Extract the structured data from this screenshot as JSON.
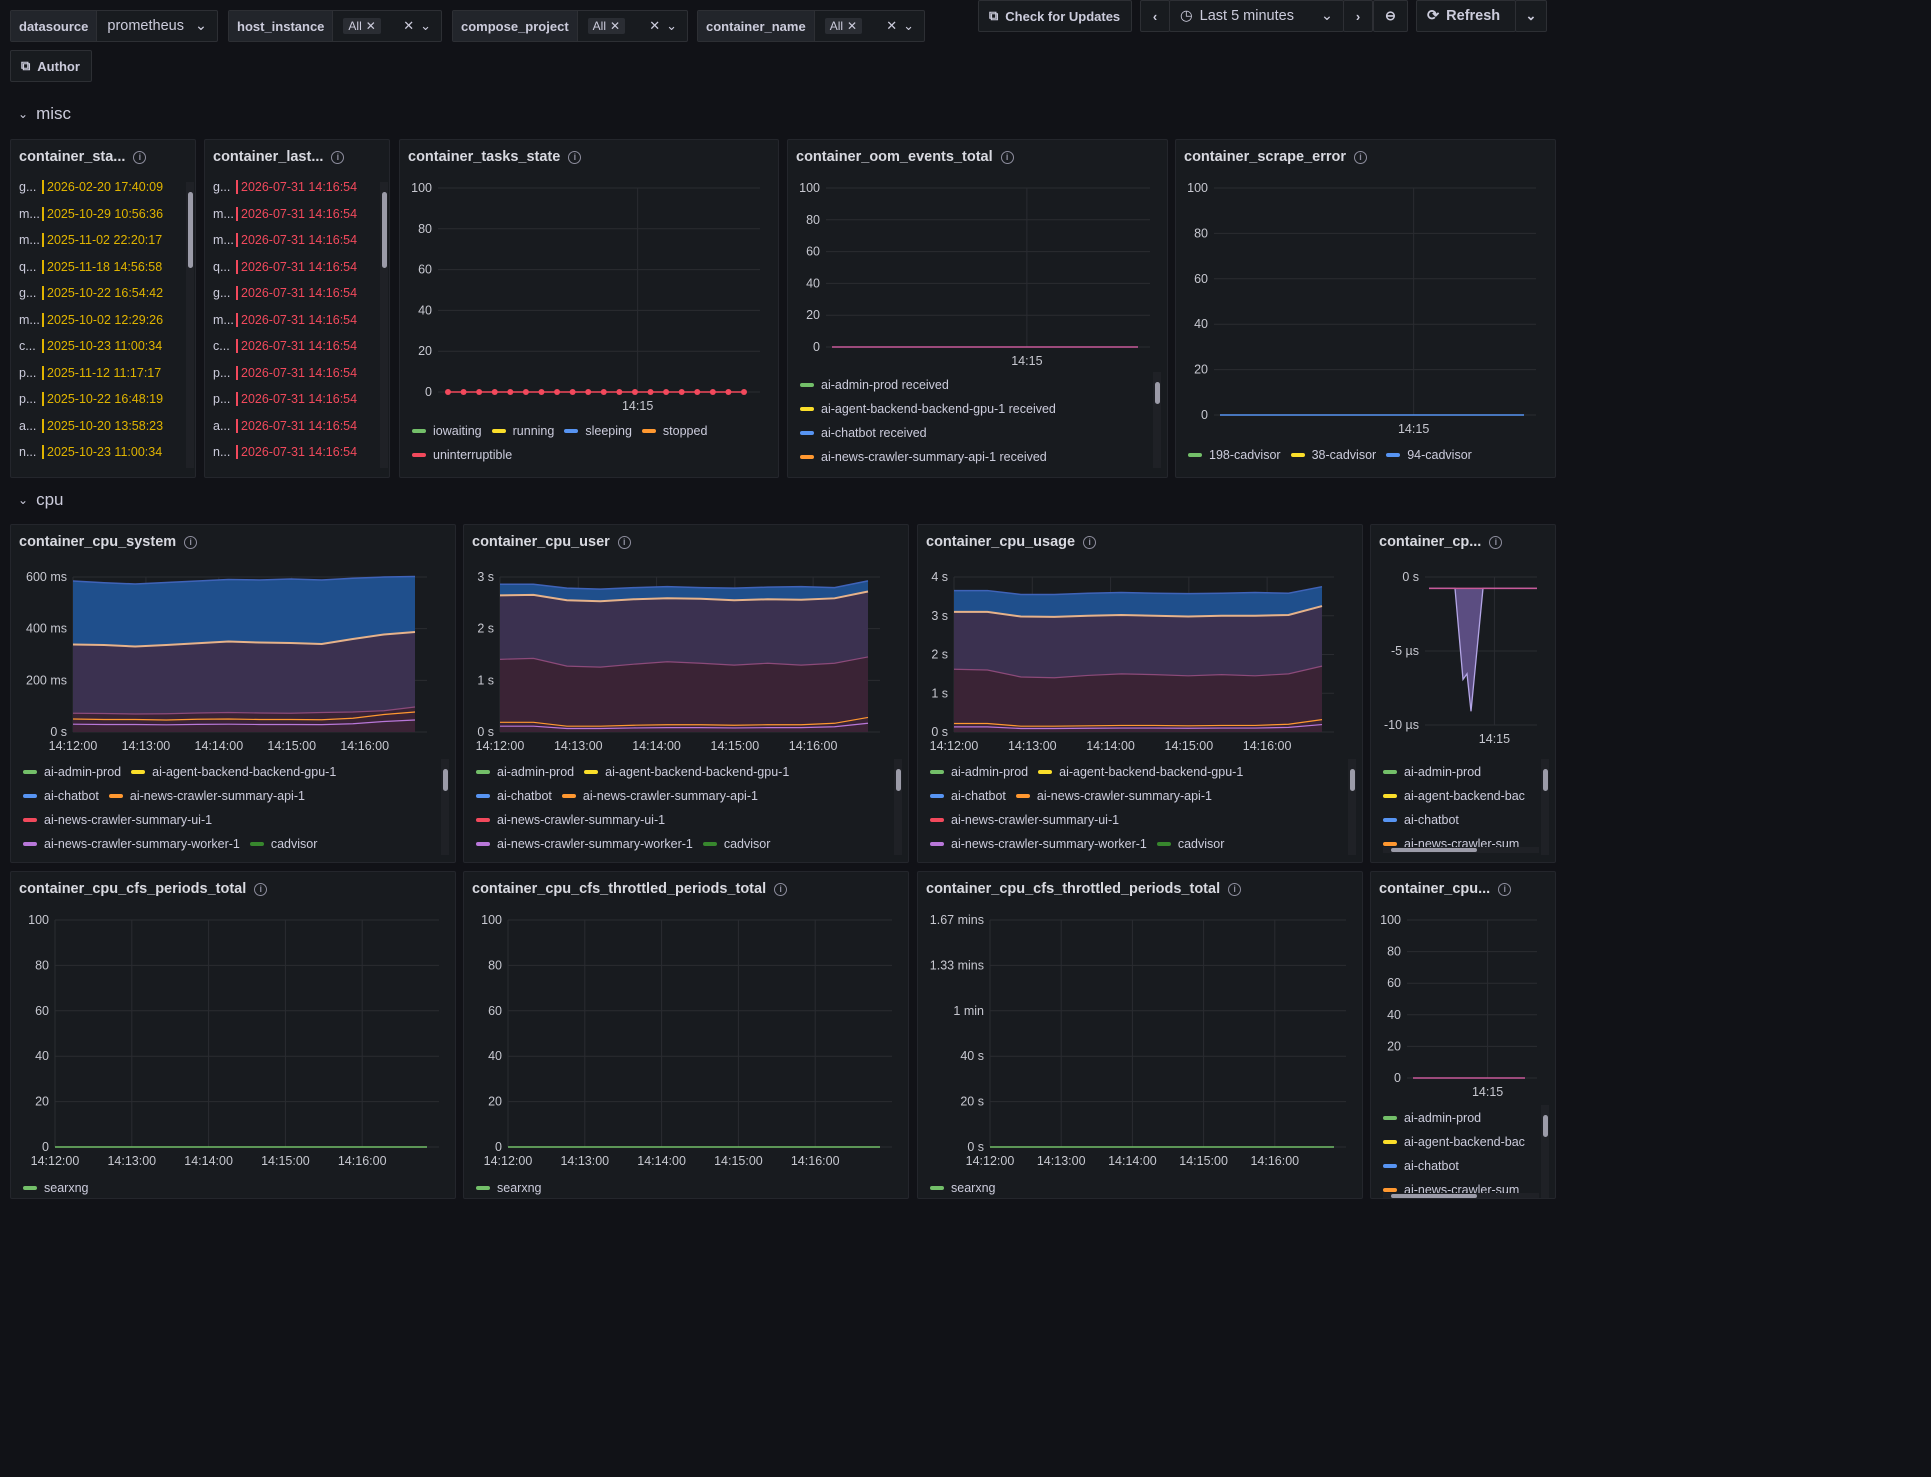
{
  "vars": [
    {
      "label": "datasource",
      "value": "prometheus"
    },
    {
      "label": "host_instance",
      "chip": "All"
    },
    {
      "label": "compose_project",
      "chip": "All"
    },
    {
      "label": "container_name",
      "chip": "All"
    }
  ],
  "toolbar": {
    "check_updates": "Check for Updates",
    "time_range": "Last 5 minutes",
    "refresh": "Refresh",
    "author": "Author"
  },
  "rows": {
    "misc": "misc",
    "cpu": "cpu"
  },
  "start_panel": {
    "title": "container_sta...",
    "rows": [
      {
        "k": "g...",
        "v": "2026-02-20 17:40:09"
      },
      {
        "k": "m...",
        "v": "2025-10-29 10:56:36"
      },
      {
        "k": "m...",
        "v": "2025-11-02 22:20:17"
      },
      {
        "k": "q...",
        "v": "2025-11-18 14:56:58"
      },
      {
        "k": "g...",
        "v": "2025-10-22 16:54:42"
      },
      {
        "k": "m...",
        "v": "2025-10-02 12:29:26"
      },
      {
        "k": "c...",
        "v": "2025-10-23 11:00:34"
      },
      {
        "k": "p...",
        "v": "2025-11-12 11:17:17"
      },
      {
        "k": "p...",
        "v": "2025-10-22 16:48:19"
      },
      {
        "k": "a...",
        "v": "2025-10-20 13:58:23"
      },
      {
        "k": "n...",
        "v": "2025-10-23 11:00:34"
      }
    ]
  },
  "last_panel": {
    "title": "container_last...",
    "rows": [
      {
        "k": "g...",
        "v": "2026-07-31 14:16:54"
      },
      {
        "k": "m...",
        "v": "2026-07-31 14:16:54"
      },
      {
        "k": "m...",
        "v": "2026-07-31 14:16:54"
      },
      {
        "k": "q...",
        "v": "2026-07-31 14:16:54"
      },
      {
        "k": "g...",
        "v": "2026-07-31 14:16:54"
      },
      {
        "k": "m...",
        "v": "2026-07-31 14:16:54"
      },
      {
        "k": "c...",
        "v": "2026-07-31 14:16:54"
      },
      {
        "k": "p...",
        "v": "2026-07-31 14:16:54"
      },
      {
        "k": "p...",
        "v": "2026-07-31 14:16:54"
      },
      {
        "k": "a...",
        "v": "2026-07-31 14:16:54"
      },
      {
        "k": "n...",
        "v": "2026-07-31 14:16:54"
      }
    ]
  },
  "colors": {
    "green": "#73bf69",
    "yellow": "#fade2a",
    "blue": "#5794f2",
    "orange": "#ff9830",
    "red": "#f2495c",
    "purple": "#b877d9",
    "dkgreen": "#37872d",
    "start_val": "#e0b400",
    "last_val": "#f2495c"
  },
  "panels": [
    {
      "id": "tasks",
      "title": "container_tasks_state",
      "legend": [
        {
          "name": "iowaiting",
          "color": "#73bf69"
        },
        {
          "name": "running",
          "color": "#fade2a"
        },
        {
          "name": "sleeping",
          "color": "#5794f2"
        },
        {
          "name": "stopped",
          "color": "#ff9830"
        },
        {
          "name": "uninterruptible",
          "color": "#f2495c"
        }
      ]
    },
    {
      "id": "oom",
      "title": "container_oom_events_total",
      "legend": [
        {
          "name": "ai-admin-prod received",
          "color": "#73bf69"
        },
        {
          "name": "ai-agent-backend-backend-gpu-1 received",
          "color": "#fade2a"
        },
        {
          "name": "ai-chatbot received",
          "color": "#5794f2"
        },
        {
          "name": "ai-news-crawler-summary-api-1 received",
          "color": "#ff9830"
        }
      ]
    },
    {
      "id": "scrape",
      "title": "container_scrape_error",
      "legend": [
        {
          "name": "198-cadvisor",
          "color": "#73bf69"
        },
        {
          "name": "38-cadvisor",
          "color": "#fade2a"
        },
        {
          "name": "94-cadvisor",
          "color": "#5794f2"
        }
      ]
    },
    {
      "id": "sys",
      "title": "container_cpu_system",
      "legend": [
        {
          "name": "ai-admin-prod",
          "color": "#73bf69"
        },
        {
          "name": "ai-agent-backend-backend-gpu-1",
          "color": "#fade2a"
        },
        {
          "name": "ai-chatbot",
          "color": "#5794f2"
        },
        {
          "name": "ai-news-crawler-summary-api-1",
          "color": "#ff9830"
        },
        {
          "name": "ai-news-crawler-summary-ui-1",
          "color": "#f2495c"
        },
        {
          "name": "ai-news-crawler-summary-worker-1",
          "color": "#b877d9"
        },
        {
          "name": "cadvisor",
          "color": "#37872d"
        }
      ]
    },
    {
      "id": "user",
      "title": "container_cpu_user",
      "legend": [
        {
          "name": "ai-admin-prod",
          "color": "#73bf69"
        },
        {
          "name": "ai-agent-backend-backend-gpu-1",
          "color": "#fade2a"
        },
        {
          "name": "ai-chatbot",
          "color": "#5794f2"
        },
        {
          "name": "ai-news-crawler-summary-api-1",
          "color": "#ff9830"
        },
        {
          "name": "ai-news-crawler-summary-ui-1",
          "color": "#f2495c"
        },
        {
          "name": "ai-news-crawler-summary-worker-1",
          "color": "#b877d9"
        },
        {
          "name": "cadvisor",
          "color": "#37872d"
        }
      ]
    },
    {
      "id": "usage",
      "title": "container_cpu_usage",
      "legend": [
        {
          "name": "ai-admin-prod",
          "color": "#73bf69"
        },
        {
          "name": "ai-agent-backend-backend-gpu-1",
          "color": "#fade2a"
        },
        {
          "name": "ai-chatbot",
          "color": "#5794f2"
        },
        {
          "name": "ai-news-crawler-summary-api-1",
          "color": "#ff9830"
        },
        {
          "name": "ai-news-crawler-summary-ui-1",
          "color": "#f2495c"
        },
        {
          "name": "ai-news-crawler-summary-worker-1",
          "color": "#b877d9"
        },
        {
          "name": "cadvisor",
          "color": "#37872d"
        }
      ]
    },
    {
      "id": "cpx",
      "title": "container_cp...",
      "legend": [
        {
          "name": "ai-admin-prod",
          "color": "#73bf69"
        },
        {
          "name": "ai-agent-backend-bac",
          "color": "#fade2a"
        },
        {
          "name": "ai-chatbot",
          "color": "#5794f2"
        },
        {
          "name": "ai-news-crawler-sum",
          "color": "#ff9830"
        }
      ]
    },
    {
      "id": "periods",
      "title": "container_cpu_cfs_periods_total",
      "legend": [
        {
          "name": "searxng",
          "color": "#73bf69"
        }
      ]
    },
    {
      "id": "thr1",
      "title": "container_cpu_cfs_throttled_periods_total",
      "legend": [
        {
          "name": "searxng",
          "color": "#73bf69"
        }
      ]
    },
    {
      "id": "thr2",
      "title": "container_cpu_cfs_throttled_periods_total",
      "legend": [
        {
          "name": "searxng",
          "color": "#73bf69"
        }
      ]
    },
    {
      "id": "cpu2",
      "title": "container_cpu...",
      "legend": [
        {
          "name": "ai-admin-prod",
          "color": "#73bf69"
        },
        {
          "name": "ai-agent-backend-bac",
          "color": "#fade2a"
        },
        {
          "name": "ai-chatbot",
          "color": "#5794f2"
        },
        {
          "name": "ai-news-crawler-sum",
          "color": "#ff9830"
        }
      ]
    }
  ],
  "chart_data": [
    {
      "id": "tasks",
      "type": "line",
      "yticks": [
        "100",
        "80",
        "60",
        "40",
        "20",
        "0"
      ],
      "ylim": [
        0,
        100
      ],
      "xticks": [
        "14:15"
      ],
      "series": [
        {
          "name": "uninterruptible",
          "values": [
            0,
            0,
            0,
            0,
            0,
            0,
            0,
            0,
            0,
            0,
            0,
            0,
            0,
            0,
            0,
            0,
            0,
            0,
            0,
            0
          ]
        }
      ]
    },
    {
      "id": "oom",
      "type": "line",
      "yticks": [
        "100",
        "80",
        "60",
        "40",
        "20",
        "0"
      ],
      "ylim": [
        0,
        100
      ],
      "xticks": [
        "14:15"
      ]
    },
    {
      "id": "scrape",
      "type": "line",
      "yticks": [
        "100",
        "80",
        "60",
        "40",
        "20",
        "0"
      ],
      "ylim": [
        0,
        100
      ],
      "xticks": [
        "14:15"
      ]
    },
    {
      "id": "sys",
      "type": "area",
      "yticks": [
        "600 ms",
        "400 ms",
        "200 ms",
        "0 s"
      ],
      "ylim": [
        0,
        620
      ],
      "xticks": [
        "14:12:00",
        "14:13:00",
        "14:14:00",
        "14:15:00",
        "14:16:00"
      ],
      "stack_top": [
        604,
        597,
        592,
        598,
        604,
        610,
        608,
        612,
        608,
        615,
        620,
        622
      ],
      "mid": [
        350,
        348,
        342,
        348,
        355,
        362,
        358,
        356,
        352,
        372,
        390,
        400
      ],
      "purple_top": [
        75,
        74,
        72,
        73,
        76,
        78,
        76,
        75,
        78,
        80,
        85,
        100
      ],
      "low_lines": [
        52,
        50,
        50,
        48,
        51,
        52,
        50,
        50,
        49,
        55,
        70,
        80
      ]
    },
    {
      "id": "user",
      "type": "area",
      "yticks": [
        "3 s",
        "2 s",
        "1 s",
        "0 s"
      ],
      "ylim": [
        0,
        3.2
      ],
      "xticks": [
        "14:12:00",
        "14:13:00",
        "14:14:00",
        "14:15:00",
        "14:16:00"
      ],
      "stack_top": [
        3.05,
        3.05,
        2.97,
        2.95,
        2.98,
        3.0,
        2.98,
        2.97,
        2.99,
        3.0,
        2.98,
        3.12
      ],
      "mid": [
        2.82,
        2.83,
        2.72,
        2.7,
        2.74,
        2.76,
        2.75,
        2.72,
        2.74,
        2.73,
        2.76,
        2.9
      ],
      "purple_top": [
        1.5,
        1.52,
        1.36,
        1.34,
        1.4,
        1.45,
        1.42,
        1.38,
        1.42,
        1.38,
        1.42,
        1.55
      ],
      "low_lines": [
        0.2,
        0.2,
        0.12,
        0.12,
        0.14,
        0.15,
        0.15,
        0.14,
        0.15,
        0.15,
        0.18,
        0.3
      ]
    },
    {
      "id": "usage",
      "type": "area",
      "yticks": [
        "4 s",
        "3 s",
        "2 s",
        "1 s",
        "0 s"
      ],
      "ylim": [
        0,
        4
      ],
      "xticks": [
        "14:12:00",
        "14:13:00",
        "14:14:00",
        "14:15:00",
        "14:16:00"
      ],
      "stack_top": [
        3.65,
        3.65,
        3.55,
        3.55,
        3.58,
        3.6,
        3.58,
        3.57,
        3.58,
        3.6,
        3.58,
        3.75
      ],
      "mid": [
        3.1,
        3.1,
        2.98,
        2.97,
        3.0,
        3.02,
        3.0,
        2.98,
        3.0,
        3.0,
        3.02,
        3.25
      ],
      "purple_top": [
        1.62,
        1.6,
        1.42,
        1.4,
        1.46,
        1.5,
        1.48,
        1.45,
        1.48,
        1.45,
        1.5,
        1.7
      ],
      "low_lines": [
        0.22,
        0.22,
        0.15,
        0.15,
        0.16,
        0.17,
        0.17,
        0.16,
        0.17,
        0.17,
        0.2,
        0.32
      ]
    },
    {
      "id": "cpx",
      "type": "area",
      "yticks": [
        "0 s",
        "-5 µs",
        "-10 µs"
      ],
      "ylim": [
        -12,
        1
      ],
      "xticks": [
        "14:15"
      ]
    },
    {
      "id": "periods",
      "type": "line",
      "yticks": [
        "100",
        "80",
        "60",
        "40",
        "20",
        "0"
      ],
      "ylim": [
        0,
        100
      ],
      "xticks": [
        "14:12:00",
        "14:13:00",
        "14:14:00",
        "14:15:00",
        "14:16:00"
      ]
    },
    {
      "id": "thr1",
      "type": "line",
      "yticks": [
        "100",
        "80",
        "60",
        "40",
        "20",
        "0"
      ],
      "ylim": [
        0,
        100
      ],
      "xticks": [
        "14:12:00",
        "14:13:00",
        "14:14:00",
        "14:15:00",
        "14:16:00"
      ]
    },
    {
      "id": "thr2",
      "type": "line",
      "yticks": [
        "1.67 mins",
        "1.33 mins",
        "1 min",
        "40 s",
        "20 s",
        "0 s"
      ],
      "ylim": [
        0,
        100
      ],
      "xticks": [
        "14:12:00",
        "14:13:00",
        "14:14:00",
        "14:15:00",
        "14:16:00"
      ]
    },
    {
      "id": "cpu2",
      "type": "line",
      "yticks": [
        "100",
        "80",
        "60",
        "40",
        "20",
        "0"
      ],
      "ylim": [
        0,
        100
      ],
      "xticks": [
        "14:15"
      ]
    }
  ]
}
